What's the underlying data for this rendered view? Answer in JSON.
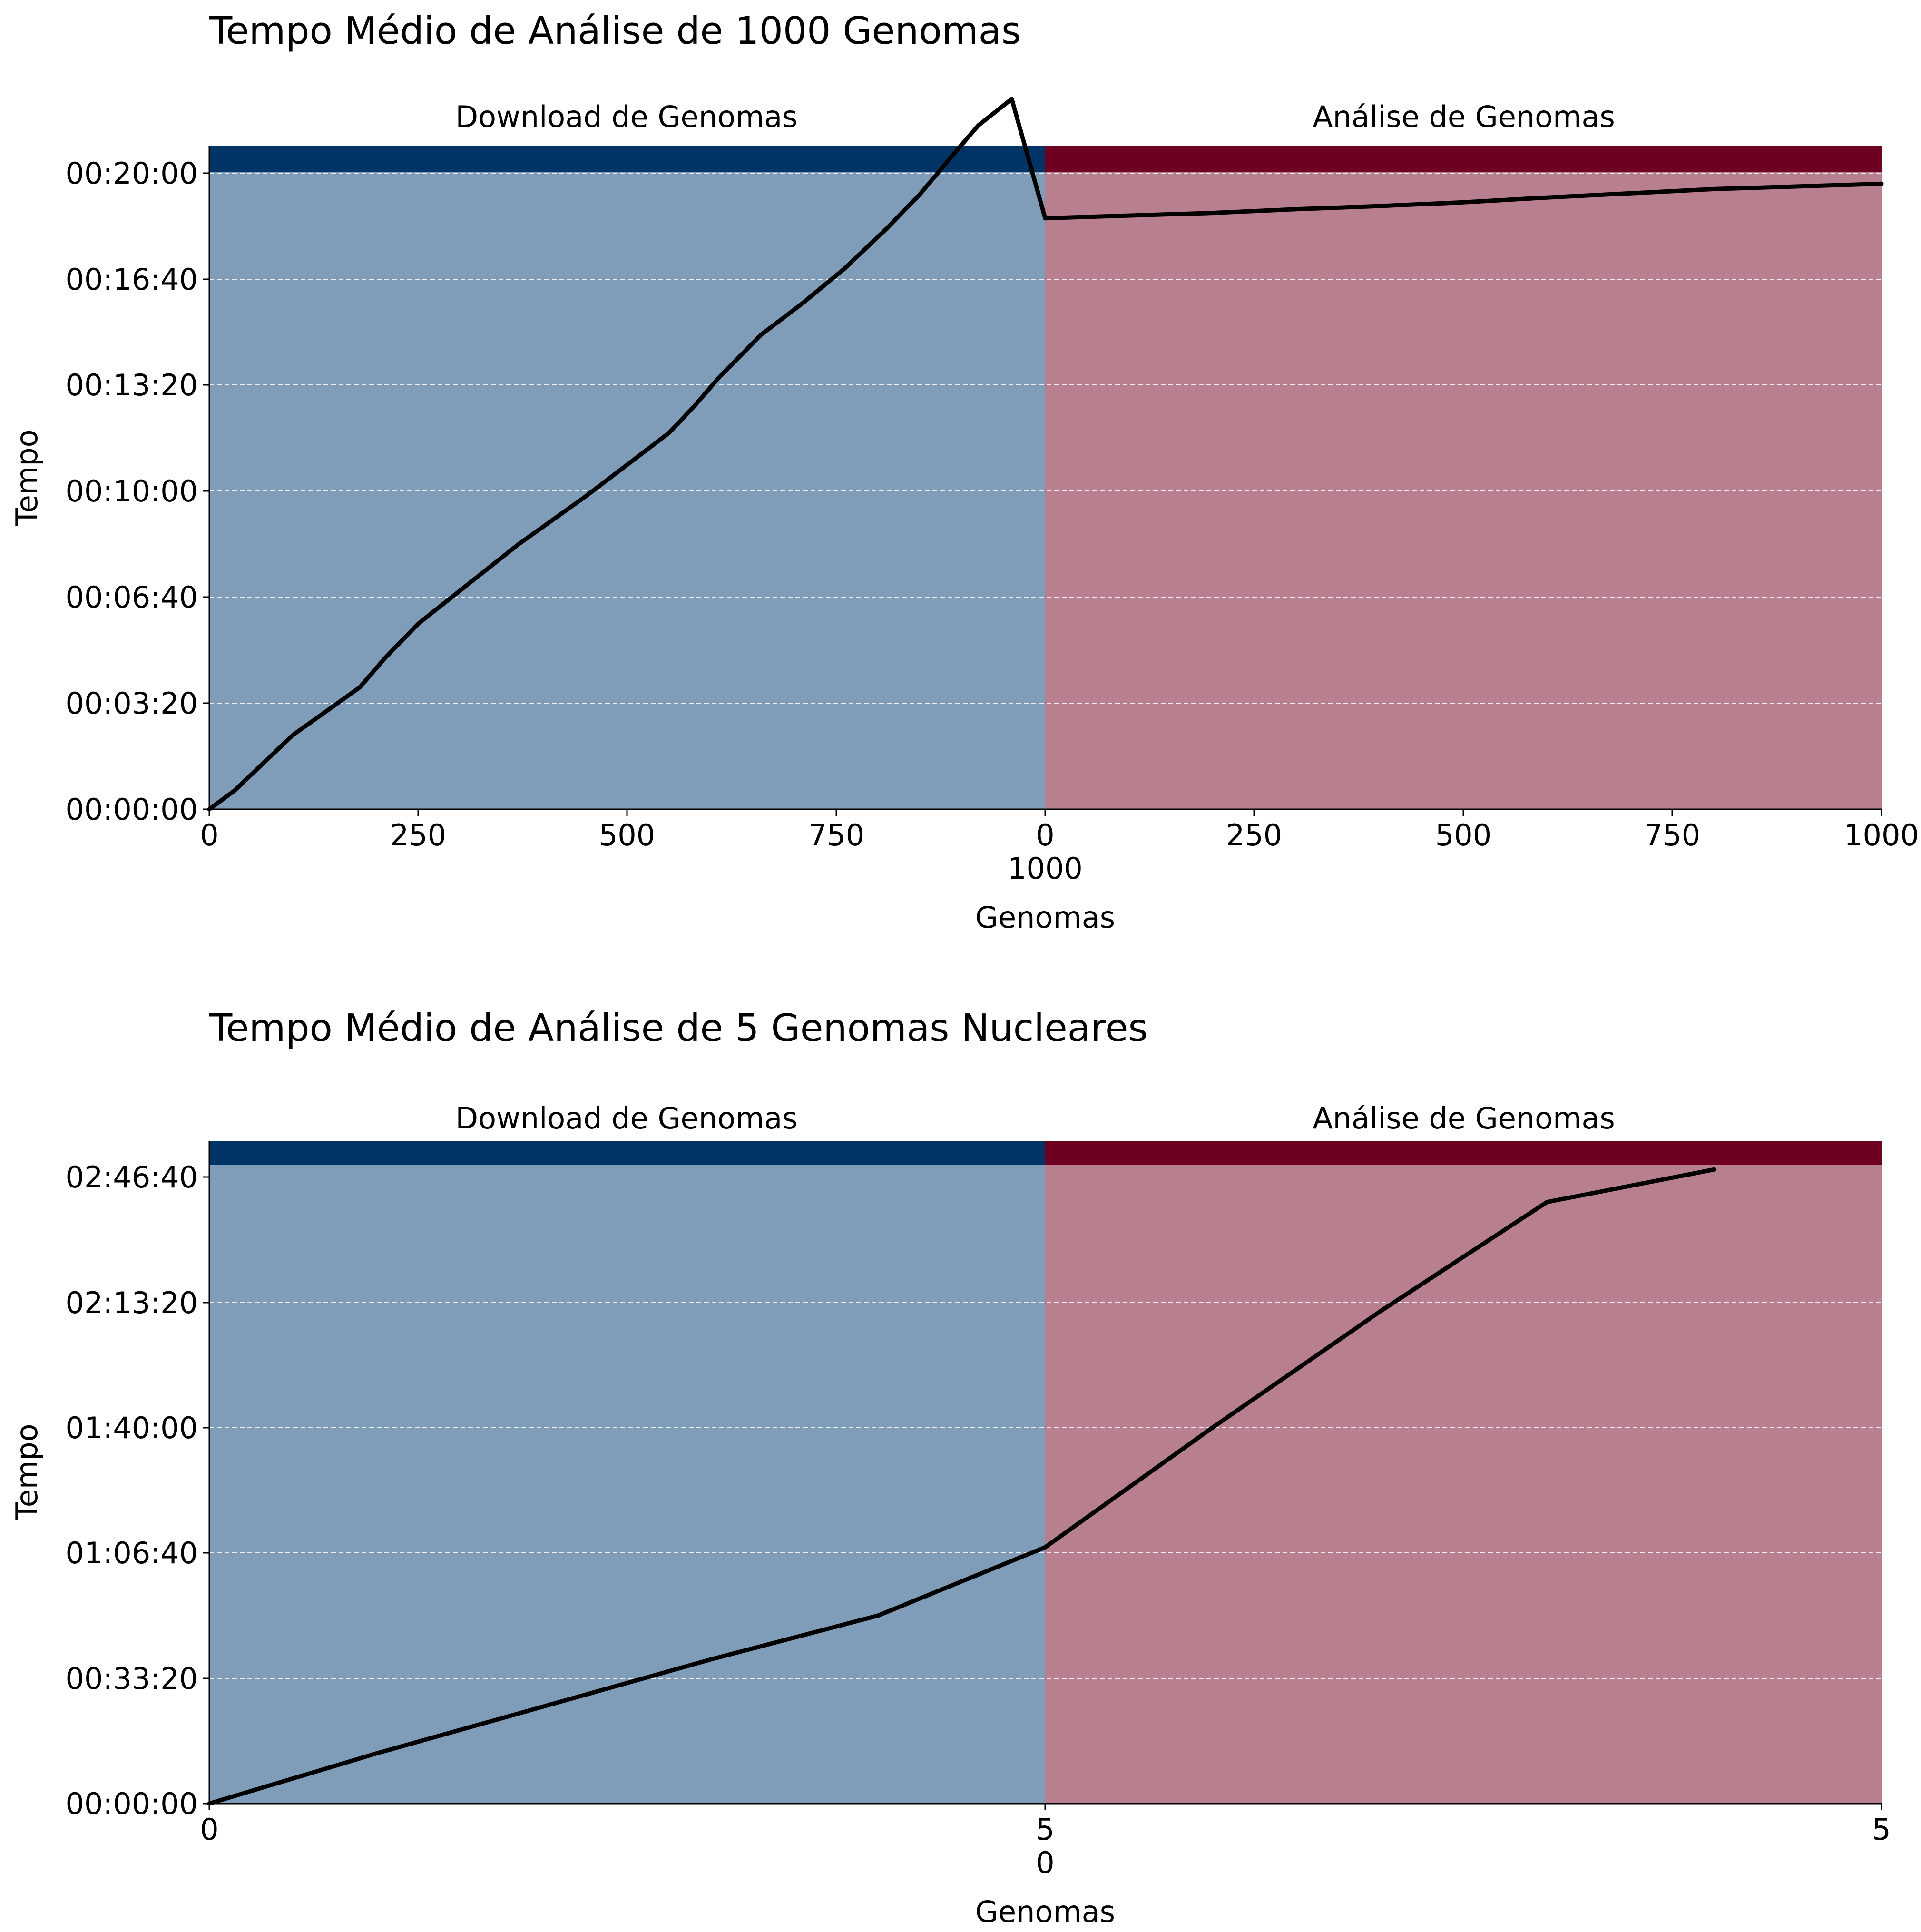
{
  "colors": {
    "download_band": "#003366",
    "analysis_band": "#6e0021",
    "download_fill": "#7f9cb8",
    "analysis_fill": "#b87f8e",
    "line": "#000000",
    "grid": "#ffffff"
  },
  "chart_data": [
    {
      "type": "line",
      "title": "Tempo Médio de Análise de 1000 Genomas",
      "xlabel": "Genomas",
      "ylabel": "Tempo",
      "phase_labels": [
        "Download de Genomas",
        "Análise de Genomas"
      ],
      "x_ticks": [
        "0",
        "250",
        "500",
        "750",
        "0",
        "250",
        "500",
        "750",
        "1000"
      ],
      "x_boundary_label": "1000",
      "y_ticks": [
        "00:00:00",
        "00:03:20",
        "00:06:40",
        "00:10:00",
        "00:13:20",
        "00:16:40",
        "00:20:00"
      ],
      "grid": "y, dashed",
      "phases": [
        {
          "name": "Download de Genomas",
          "xlim": [
            0,
            1000
          ],
          "x": [
            0,
            30,
            60,
            100,
            140,
            180,
            210,
            250,
            290,
            330,
            370,
            410,
            450,
            500,
            550,
            580,
            610,
            660,
            710,
            760,
            810,
            850,
            890,
            920,
            960,
            1000
          ],
          "y_seconds": [
            0,
            35,
            80,
            140,
            185,
            230,
            285,
            350,
            400,
            450,
            500,
            545,
            590,
            650,
            710,
            760,
            815,
            895,
            955,
            1020,
            1095,
            1160,
            1235,
            1290,
            1340,
            1115
          ]
        },
        {
          "name": "Análise de Genomas",
          "xlim": [
            0,
            1000
          ],
          "x": [
            0,
            100,
            200,
            300,
            400,
            500,
            600,
            700,
            800,
            900,
            1000
          ],
          "y_seconds": [
            1115,
            1120,
            1125,
            1132,
            1138,
            1145,
            1154,
            1162,
            1170,
            1175,
            1180
          ]
        }
      ],
      "ylim_seconds": [
        0,
        1250
      ]
    },
    {
      "type": "line",
      "title": "Tempo Médio de Análise de 5 Genomas Nucleares",
      "xlabel": "Genomas",
      "ylabel": "Tempo",
      "phase_labels": [
        "Download de Genomas",
        "Análise de Genomas"
      ],
      "x_ticks": [
        "0",
        "5",
        "5"
      ],
      "x_boundary_label": "0",
      "y_ticks": [
        "00:00:00",
        "00:33:20",
        "01:06:40",
        "01:40:00",
        "02:13:20",
        "02:46:40"
      ],
      "grid": "y, dashed",
      "phases": [
        {
          "name": "Download de Genomas",
          "xlim": [
            0,
            5
          ],
          "x": [
            0,
            1,
            2,
            3,
            4,
            5
          ],
          "y_seconds": [
            0,
            800,
            1550,
            2300,
            3000,
            4090
          ]
        },
        {
          "name": "Análise de Genomas",
          "xlim": [
            0,
            5
          ],
          "x": [
            0,
            1,
            2,
            3,
            4
          ],
          "y_seconds": [
            4090,
            6000,
            7850,
            9600,
            10120
          ]
        }
      ],
      "ylim_seconds": [
        0,
        10600
      ]
    }
  ]
}
